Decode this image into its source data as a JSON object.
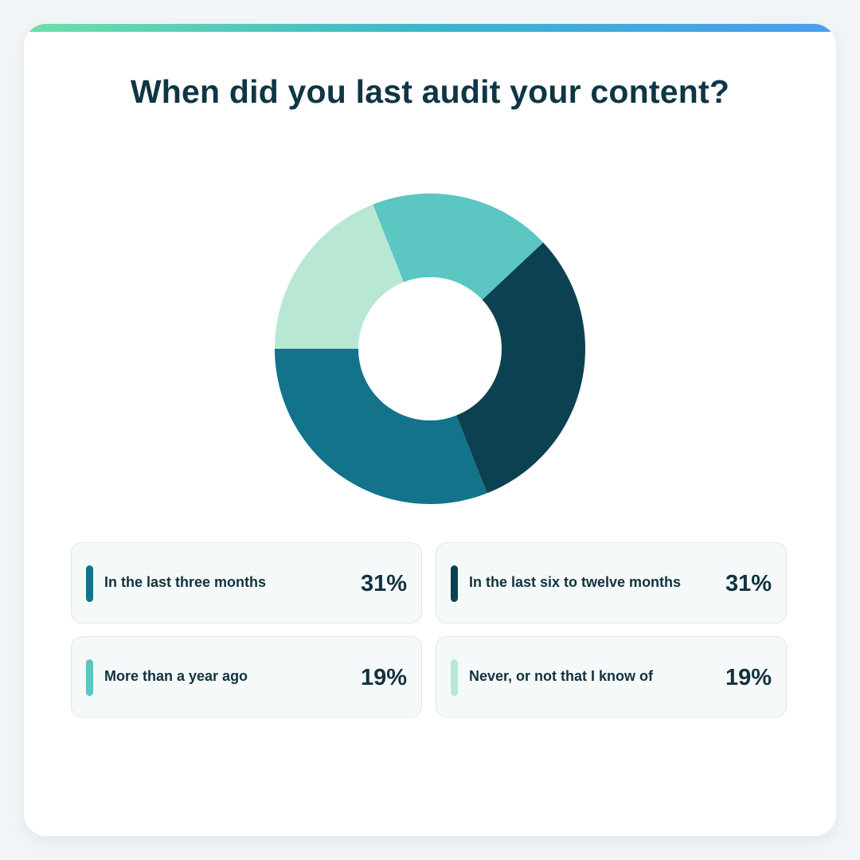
{
  "title": "When did you last audit your content?",
  "colors": {
    "three_months": "#12738a",
    "six_to_twelve": "#0c4152",
    "year_ago": "#5bc6c2",
    "never": "#b8e8d4",
    "text": "#0e3645",
    "background": "#f2f5f7",
    "card": "#ffffff"
  },
  "chart_data": {
    "type": "pie",
    "title": "When did you last audit your content?",
    "categories": [
      "In the last three months",
      "In the last six to twelve months",
      "More than a year ago",
      "Never, or not that I know of"
    ],
    "values": [
      31,
      31,
      19,
      19
    ],
    "unit": "%",
    "labels": [
      "31%",
      "31%",
      "19%",
      "19%"
    ],
    "colors": [
      "#12738a",
      "#0c4152",
      "#5bc6c2",
      "#b8e8d4"
    ],
    "legend": "bottom"
  },
  "legend": [
    {
      "label": "In the last three months",
      "value": "31%",
      "color": "#12738a"
    },
    {
      "label": "In the last six to twelve months",
      "value": "31%",
      "color": "#0c4152"
    },
    {
      "label": "More than a year ago",
      "value": "19%",
      "color": "#5bc6c2"
    },
    {
      "label": "Never, or not that I know of",
      "value": "19%",
      "color": "#b8e8d4"
    }
  ]
}
